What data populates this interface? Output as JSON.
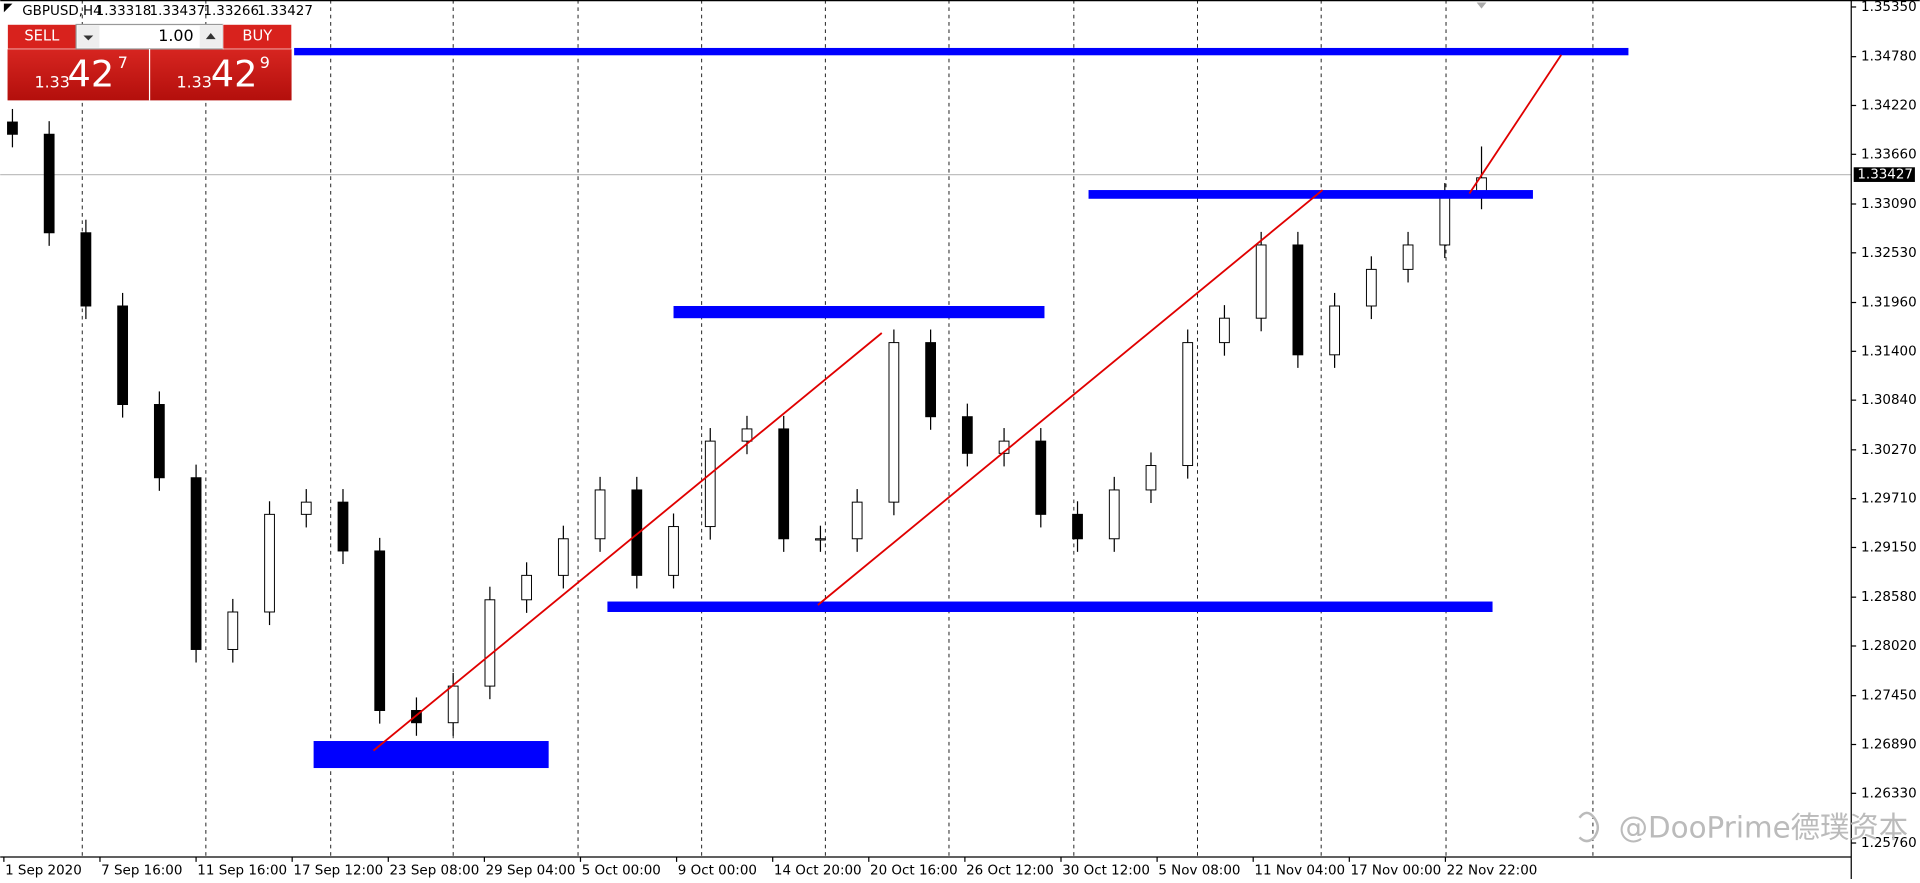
{
  "header": {
    "symbol": "GBPUSD,H4",
    "open": "1.33318",
    "high": "1.33437",
    "low": "1.33266",
    "close": "1.33427"
  },
  "trade_panel": {
    "sell": "SELL",
    "buy": "BUY",
    "lots": "1.00",
    "bid": {
      "prefix": "1.33",
      "big": "42",
      "small": "7"
    },
    "ask": {
      "prefix": "1.33",
      "big": "42",
      "small": "9"
    }
  },
  "watermark": "@DooPrime德璞资本",
  "chart_data": {
    "type": "candlestick",
    "x_labels": [
      "1 Sep 2020",
      "7 Sep 16:00",
      "11 Sep 16:00",
      "17 Sep 12:00",
      "23 Sep 08:00",
      "29 Sep 04:00",
      "5 Oct 00:00",
      "9 Oct 00:00",
      "14 Oct 20:00",
      "20 Oct 16:00",
      "26 Oct 12:00",
      "30 Oct 12:00",
      "5 Nov 08:00",
      "11 Nov 04:00",
      "17 Nov 00:00",
      "22 Nov 22:00"
    ],
    "open": [
      1.3403,
      1.3389,
      1.3276,
      1.3192,
      1.3079,
      1.2995,
      1.2798,
      1.2841,
      1.2953,
      1.2967,
      1.2911,
      1.2728,
      1.2714,
      1.2756,
      1.2855,
      1.2883,
      1.2925,
      1.2981,
      1.2883,
      1.2939,
      1.3037,
      1.3051,
      1.2925,
      1.2925,
      1.2967,
      1.315,
      1.3065,
      1.3023,
      1.3037,
      1.2953,
      1.2925,
      1.2981,
      1.3009,
      1.315,
      1.3178,
      1.3262,
      1.3136,
      1.3192,
      1.3234,
      1.3262,
      1.3318
    ],
    "high": [
      1.3418,
      1.3404,
      1.3291,
      1.3207,
      1.3094,
      1.301,
      1.2856,
      1.2968,
      1.2982,
      1.2982,
      1.2926,
      1.2743,
      1.2771,
      1.287,
      1.2898,
      1.294,
      1.2996,
      1.2996,
      1.2954,
      1.3052,
      1.3066,
      1.3066,
      1.294,
      1.2982,
      1.3165,
      1.3165,
      1.308,
      1.3052,
      1.3052,
      1.2968,
      1.2996,
      1.3024,
      1.3165,
      1.3193,
      1.3277,
      1.3277,
      1.3207,
      1.3249,
      1.3277,
      1.3333,
      1.3375
    ],
    "low": [
      1.3374,
      1.3261,
      1.3177,
      1.3064,
      1.298,
      1.2783,
      1.2783,
      1.2826,
      1.2938,
      1.2896,
      1.2713,
      1.2699,
      1.2699,
      1.2741,
      1.284,
      1.2868,
      1.291,
      1.2868,
      1.2868,
      1.2924,
      1.3022,
      1.291,
      1.291,
      1.291,
      1.2952,
      1.305,
      1.3008,
      1.3008,
      1.2938,
      1.291,
      1.291,
      1.2966,
      1.2994,
      1.3135,
      1.3163,
      1.3121,
      1.3121,
      1.3177,
      1.3219,
      1.3247,
      1.3303
    ],
    "close": [
      1.3389,
      1.3276,
      1.3192,
      1.3079,
      1.2995,
      1.2798,
      1.2841,
      1.2953,
      1.2967,
      1.2911,
      1.2728,
      1.2714,
      1.2756,
      1.2855,
      1.2883,
      1.2925,
      1.2981,
      1.2883,
      1.2939,
      1.3037,
      1.3051,
      1.2925,
      1.2925,
      1.2967,
      1.315,
      1.3065,
      1.3023,
      1.3037,
      1.2953,
      1.2925,
      1.2981,
      1.3009,
      1.315,
      1.3178,
      1.3262,
      1.3136,
      1.3192,
      1.3234,
      1.3262,
      1.3318,
      1.3339
    ],
    "ylim": [
      1.256,
      1.3543
    ],
    "yticks": [
      {
        "value": 1.3535,
        "label": "1.35350"
      },
      {
        "value": 1.3478,
        "label": "1.34780"
      },
      {
        "value": 1.3422,
        "label": "1.34220"
      },
      {
        "value": 1.3366,
        "label": "1.33660"
      },
      {
        "value": 1.3309,
        "label": "1.33090"
      },
      {
        "value": 1.3253,
        "label": "1.32530"
      },
      {
        "value": 1.3196,
        "label": "1.31960"
      },
      {
        "value": 1.314,
        "label": "1.31400"
      },
      {
        "value": 1.3084,
        "label": "1.30840"
      },
      {
        "value": 1.3027,
        "label": "1.30270"
      },
      {
        "value": 1.2971,
        "label": "1.29710"
      },
      {
        "value": 1.2915,
        "label": "1.29150"
      },
      {
        "value": 1.2858,
        "label": "1.28580"
      },
      {
        "value": 1.2802,
        "label": "1.28020"
      },
      {
        "value": 1.2745,
        "label": "1.27450"
      },
      {
        "value": 1.2689,
        "label": "1.26890"
      },
      {
        "value": 1.2633,
        "label": "1.26330"
      },
      {
        "value": 1.2576,
        "label": "1.25760"
      }
    ],
    "current_price": 1.33427,
    "zone_color": "#0000ff",
    "line_color": "#e00000",
    "zones": [
      {
        "x": [
          7.67,
          44
        ],
        "y": [
          1.348,
          1.3488
        ]
      },
      {
        "x": [
          29.3,
          41.4
        ],
        "y": [
          1.3315,
          1.3325
        ]
      },
      {
        "x": [
          18,
          28.1
        ],
        "y": [
          1.3178,
          1.3192
        ]
      },
      {
        "x": [
          16.2,
          40.3
        ],
        "y": [
          1.2841,
          1.2853
        ]
      },
      {
        "x": [
          8.2,
          14.6
        ],
        "y": [
          1.2662,
          1.2693
        ]
      }
    ],
    "trendlines": [
      {
        "x": [
          9.83,
          23.67
        ],
        "y": [
          1.2682,
          1.3161
        ]
      },
      {
        "x": [
          21.93,
          35.67
        ],
        "y": [
          1.2849,
          1.3325
        ]
      },
      {
        "x": [
          39.67,
          42.17
        ],
        "y": [
          1.3321,
          1.348
        ]
      }
    ]
  }
}
